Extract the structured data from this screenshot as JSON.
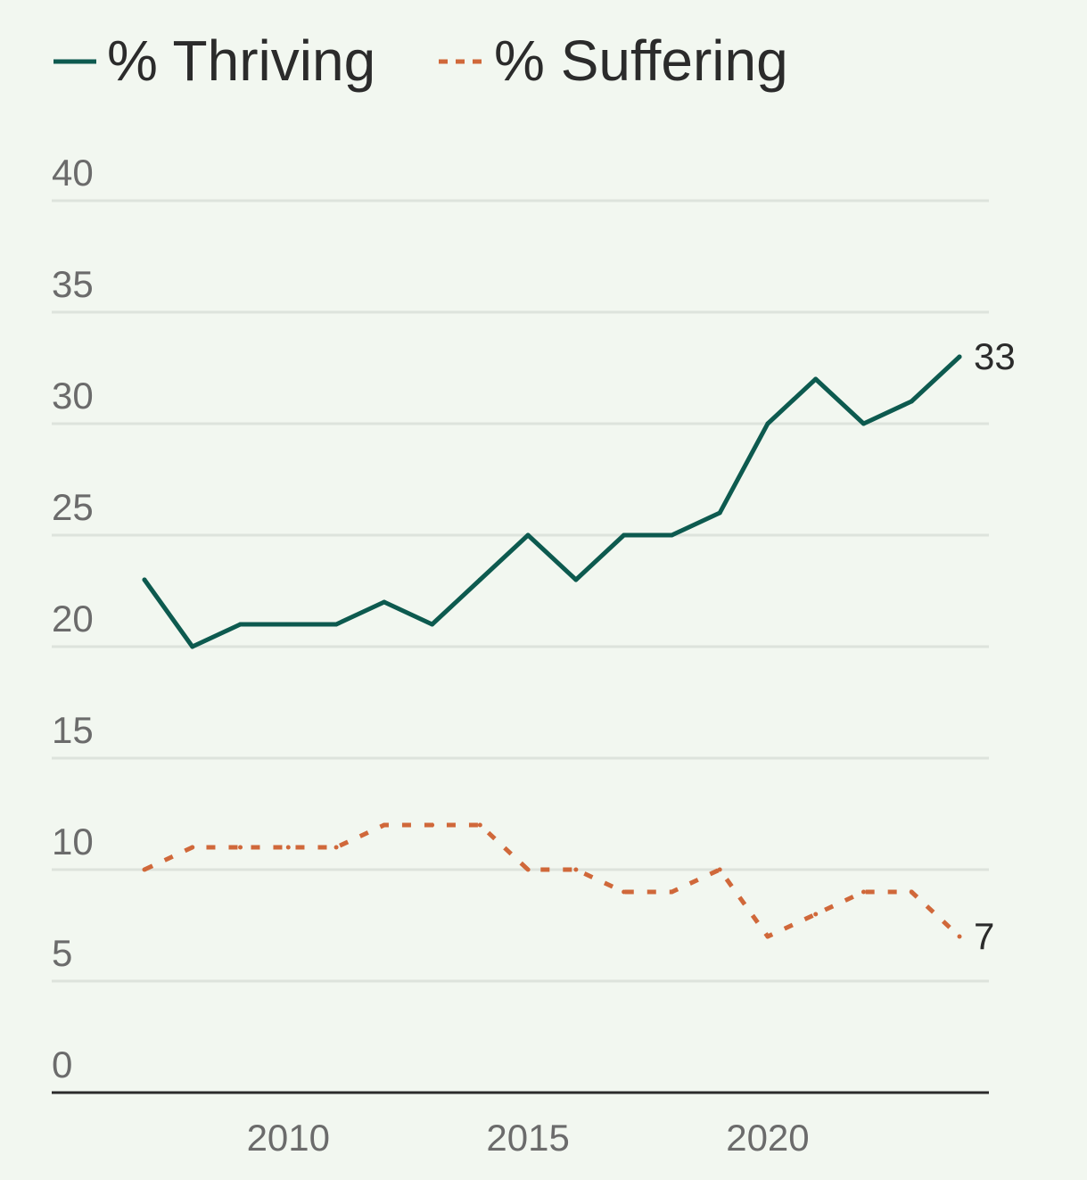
{
  "legend": {
    "thriving_label": "% Thriving",
    "suffering_label": "% Suffering"
  },
  "colors": {
    "background": "#f2f7f0",
    "thriving": "#0d5a4f",
    "suffering": "#d0683a",
    "grid": "#dde3dc",
    "axis": "#2b2b2b",
    "tick_text": "#6b6b6b",
    "label_text": "#2b2b2b"
  },
  "chart_data": {
    "type": "line",
    "title": "",
    "xlabel": "",
    "ylabel": "",
    "x": [
      2007,
      2008,
      2009,
      2010,
      2011,
      2012,
      2013,
      2014,
      2015,
      2016,
      2017,
      2018,
      2019,
      2020,
      2021,
      2022,
      2023,
      2024
    ],
    "series": [
      {
        "name": "% Thriving",
        "style": "solid",
        "values": [
          23,
          20,
          21,
          21,
          21,
          22,
          21,
          23,
          25,
          23,
          25,
          25,
          26,
          30,
          32,
          30,
          31,
          33
        ],
        "end_label": "33"
      },
      {
        "name": "% Suffering",
        "style": "dashed",
        "values": [
          10,
          11,
          11,
          11,
          11,
          12,
          12,
          12,
          10,
          10,
          9,
          9,
          10,
          7,
          8,
          9,
          9,
          7
        ],
        "end_label": "7"
      }
    ],
    "ylim": [
      0,
      40
    ],
    "yticks": [
      "0",
      "5",
      "10",
      "15",
      "20",
      "25",
      "30",
      "35",
      "40"
    ],
    "xticks": [
      "2010",
      "2015",
      "2020"
    ],
    "grid": true,
    "legend_position": "top-left"
  }
}
